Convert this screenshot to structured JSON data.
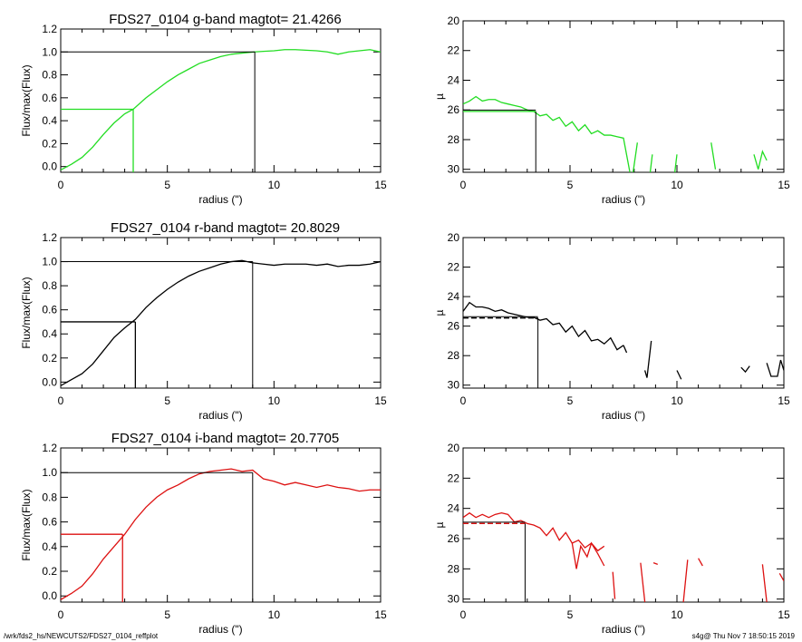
{
  "footer": {
    "left": "/wrk/fds2_hs/NEWCUTS2/FDS27_0104_reffplot",
    "right": "s4g@  Thu Nov  7 18:50:15 2019"
  },
  "chart_data": [
    {
      "type": "line",
      "title": "FDS27_0104 g-band  magtot=      21.4266",
      "xlabel": "radius (\")",
      "ylabel": "Flux/max(Flux)",
      "xlim": [
        0,
        15
      ],
      "ylim": [
        -0.05,
        1.2
      ],
      "xticks": [
        "0",
        "5",
        "10",
        "15"
      ],
      "yticks": [
        "0.0",
        "0.2",
        "0.4",
        "0.6",
        "0.8",
        "1.0",
        "1.2"
      ],
      "color": "#22dd22",
      "series": [
        {
          "x": [
            0,
            0.5,
            1,
            1.5,
            2,
            2.5,
            3,
            3.4,
            4,
            4.5,
            5,
            5.5,
            6,
            6.5,
            7,
            7.5,
            8,
            8.5,
            9.1,
            9.5,
            10,
            10.5,
            11,
            11.5,
            12,
            12.5,
            13,
            13.5,
            14,
            14.5,
            15
          ],
          "y": [
            -0.03,
            0.02,
            0.08,
            0.17,
            0.28,
            0.38,
            0.46,
            0.5,
            0.6,
            0.67,
            0.74,
            0.8,
            0.85,
            0.9,
            0.93,
            0.96,
            0.98,
            0.99,
            1.0,
            1.005,
            1.01,
            1.02,
            1.02,
            1.015,
            1.01,
            1.0,
            0.98,
            1.0,
            1.01,
            1.02,
            1.0
          ]
        }
      ],
      "half_radius": 3.4,
      "total_radius": 9.1
    },
    {
      "type": "line",
      "xlabel": "radius (\")",
      "ylabel": "µ",
      "xlim": [
        0,
        15
      ],
      "ylim": [
        30.2,
        20
      ],
      "xticks": [
        "0",
        "5",
        "10",
        "15"
      ],
      "yticks": [
        "20",
        "22",
        "24",
        "26",
        "28",
        "30"
      ],
      "color": "#22dd22",
      "mu_eff": 26.1,
      "r_eff": 3.4,
      "segments": [
        {
          "x": [
            0,
            0.3,
            0.6,
            0.9,
            1.2,
            1.5,
            1.8,
            2.1,
            2.4,
            2.7,
            3.0,
            3.3,
            3.6,
            3.9,
            4.2,
            4.5,
            4.8,
            5.1,
            5.4,
            5.7,
            6.0,
            6.3,
            6.6,
            6.9,
            7.2,
            7.5,
            7.8
          ],
          "y": [
            25.6,
            25.4,
            25.1,
            25.4,
            25.3,
            25.3,
            25.5,
            25.6,
            25.7,
            25.8,
            26.0,
            26.1,
            26.4,
            26.3,
            26.7,
            26.5,
            27.1,
            26.8,
            27.4,
            27.0,
            27.6,
            27.4,
            27.7,
            27.7,
            27.8,
            27.9,
            30.2
          ]
        },
        {
          "x": [
            7.95,
            8.15
          ],
          "y": [
            30.2,
            28.2
          ]
        },
        {
          "x": [
            8.75,
            8.85
          ],
          "y": [
            30.2,
            29.0
          ]
        },
        {
          "x": [
            9.9,
            10.0
          ],
          "y": [
            30.2,
            29.0
          ]
        },
        {
          "x": [
            11.6,
            11.8
          ],
          "y": [
            28.2,
            30.0
          ]
        },
        {
          "x": [
            13.6,
            13.8
          ],
          "y": [
            29.0,
            30.0
          ]
        },
        {
          "x": [
            13.8,
            14.0,
            14.2
          ],
          "y": [
            30.0,
            28.8,
            29.4
          ]
        }
      ]
    },
    {
      "type": "line",
      "title": "FDS27_0104 r-band  magtot=      20.8029",
      "xlabel": "radius (\")",
      "ylabel": "Flux/max(Flux)",
      "xlim": [
        0,
        15
      ],
      "ylim": [
        -0.05,
        1.2
      ],
      "xticks": [
        "0",
        "5",
        "10",
        "15"
      ],
      "yticks": [
        "0.0",
        "0.2",
        "0.4",
        "0.6",
        "0.8",
        "1.0",
        "1.2"
      ],
      "color": "#000000",
      "series": [
        {
          "x": [
            0,
            0.5,
            1,
            1.5,
            2,
            2.5,
            3,
            3.5,
            4,
            4.5,
            5,
            5.5,
            6,
            6.5,
            7,
            7.5,
            8,
            8.5,
            9,
            9.5,
            10,
            10.5,
            11,
            11.5,
            12,
            12.5,
            13,
            13.5,
            14,
            14.5,
            15
          ],
          "y": [
            -0.03,
            0.02,
            0.07,
            0.15,
            0.26,
            0.37,
            0.45,
            0.52,
            0.62,
            0.7,
            0.77,
            0.83,
            0.88,
            0.92,
            0.95,
            0.98,
            1.0,
            1.01,
            0.99,
            0.98,
            0.97,
            0.98,
            0.98,
            0.98,
            0.97,
            0.98,
            0.96,
            0.97,
            0.97,
            0.98,
            1.0
          ]
        }
      ],
      "half_radius": 3.5,
      "total_radius": 9.0
    },
    {
      "type": "line",
      "xlabel": "radius (\")",
      "ylabel": "µ",
      "xlim": [
        0,
        15
      ],
      "ylim": [
        30.2,
        20
      ],
      "xticks": [
        "0",
        "5",
        "10",
        "15"
      ],
      "yticks": [
        "20",
        "22",
        "24",
        "26",
        "28",
        "30"
      ],
      "color": "#000000",
      "mu_eff": 25.45,
      "r_eff": 3.5,
      "segments": [
        {
          "x": [
            0,
            0.3,
            0.6,
            0.9,
            1.2,
            1.5,
            1.8,
            2.1,
            2.4,
            2.7,
            3.0,
            3.3,
            3.6,
            3.9,
            4.2,
            4.5,
            4.8,
            5.1,
            5.4,
            5.7,
            6.0,
            6.3,
            6.6,
            6.9,
            7.2,
            7.5
          ],
          "y": [
            25.0,
            24.4,
            24.7,
            24.7,
            24.8,
            25.0,
            24.9,
            25.1,
            25.2,
            25.3,
            25.4,
            25.4,
            25.6,
            25.5,
            25.9,
            25.8,
            26.4,
            26.0,
            26.7,
            26.3,
            27.0,
            26.9,
            27.2,
            26.8,
            27.6,
            27.3
          ]
        },
        {
          "x": [
            7.5,
            7.65
          ],
          "y": [
            27.3,
            27.8
          ]
        },
        {
          "x": [
            8.5,
            8.6,
            8.8
          ],
          "y": [
            29.0,
            29.5,
            27.0
          ]
        },
        {
          "x": [
            10.0,
            10.2
          ],
          "y": [
            29.0,
            29.6
          ]
        },
        {
          "x": [
            13.0,
            13.2,
            13.4
          ],
          "y": [
            28.8,
            29.1,
            28.7
          ]
        },
        {
          "x": [
            14.2,
            14.4,
            14.7,
            14.85,
            15
          ],
          "y": [
            28.5,
            29.4,
            29.4,
            28.3,
            29.0
          ]
        }
      ]
    },
    {
      "type": "line",
      "title": "FDS27_0104 i-band  magtot=      20.7705",
      "xlabel": "radius (\")",
      "ylabel": "Flux/max(Flux)",
      "xlim": [
        0,
        15
      ],
      "ylim": [
        -0.05,
        1.2
      ],
      "xticks": [
        "0",
        "5",
        "10",
        "15"
      ],
      "yticks": [
        "0.0",
        "0.2",
        "0.4",
        "0.6",
        "0.8",
        "1.0",
        "1.2"
      ],
      "color": "#dd1111",
      "series": [
        {
          "x": [
            0,
            0.5,
            1,
            1.5,
            2,
            2.5,
            3,
            3.5,
            4,
            4.5,
            5,
            5.5,
            6,
            6.5,
            7,
            7.5,
            8,
            8.5,
            9,
            9.5,
            10,
            10.5,
            11,
            11.5,
            12,
            12.5,
            13,
            13.5,
            14,
            14.5,
            15
          ],
          "y": [
            -0.03,
            0.02,
            0.08,
            0.18,
            0.3,
            0.4,
            0.5,
            0.62,
            0.72,
            0.8,
            0.86,
            0.9,
            0.95,
            0.99,
            1.01,
            1.02,
            1.03,
            1.01,
            1.02,
            0.95,
            0.93,
            0.9,
            0.92,
            0.9,
            0.88,
            0.9,
            0.88,
            0.87,
            0.85,
            0.86,
            0.86
          ]
        }
      ],
      "half_radius": 2.9,
      "total_radius": 9.0
    },
    {
      "type": "line",
      "xlabel": "radius (\")",
      "ylabel": "µ",
      "xlim": [
        0,
        15
      ],
      "ylim": [
        30.2,
        20
      ],
      "xticks": [
        "0",
        "5",
        "10",
        "15"
      ],
      "yticks": [
        "20",
        "22",
        "24",
        "26",
        "28",
        "30"
      ],
      "color": "#dd1111",
      "mu_eff": 25.0,
      "r_eff": 2.9,
      "segments": [
        {
          "x": [
            0,
            0.3,
            0.6,
            0.9,
            1.2,
            1.5,
            1.8,
            2.1,
            2.4,
            2.7,
            3.0,
            3.3,
            3.6,
            3.9,
            4.2,
            4.5,
            4.8,
            5.1,
            5.4,
            5.7,
            6.0,
            6.3,
            6.6
          ],
          "y": [
            24.6,
            24.3,
            24.6,
            24.4,
            24.6,
            24.4,
            24.3,
            24.4,
            24.9,
            24.8,
            25.0,
            25.1,
            25.3,
            25.8,
            25.3,
            26.1,
            25.6,
            26.3,
            26.1,
            26.6,
            26.3,
            26.8,
            26.5
          ]
        },
        {
          "x": [
            5.1,
            5.3,
            5.5,
            5.8,
            6.0,
            6.3,
            6.6
          ],
          "y": [
            26.3,
            28.0,
            26.5,
            27.2,
            26.3,
            27.0,
            27.8
          ]
        },
        {
          "x": [
            7.0,
            7.1
          ],
          "y": [
            28.2,
            30.0
          ]
        },
        {
          "x": [
            8.3,
            8.5
          ],
          "y": [
            27.6,
            30.2
          ]
        },
        {
          "x": [
            8.9,
            9.1
          ],
          "y": [
            27.6,
            27.7
          ]
        },
        {
          "x": [
            10.3,
            10.5
          ],
          "y": [
            30.2,
            27.4
          ]
        },
        {
          "x": [
            11.0,
            11.2
          ],
          "y": [
            27.3,
            27.8
          ]
        },
        {
          "x": [
            14.0,
            14.2
          ],
          "y": [
            27.7,
            30.2
          ]
        },
        {
          "x": [
            14.8,
            15
          ],
          "y": [
            28.3,
            28.8
          ]
        }
      ]
    }
  ]
}
